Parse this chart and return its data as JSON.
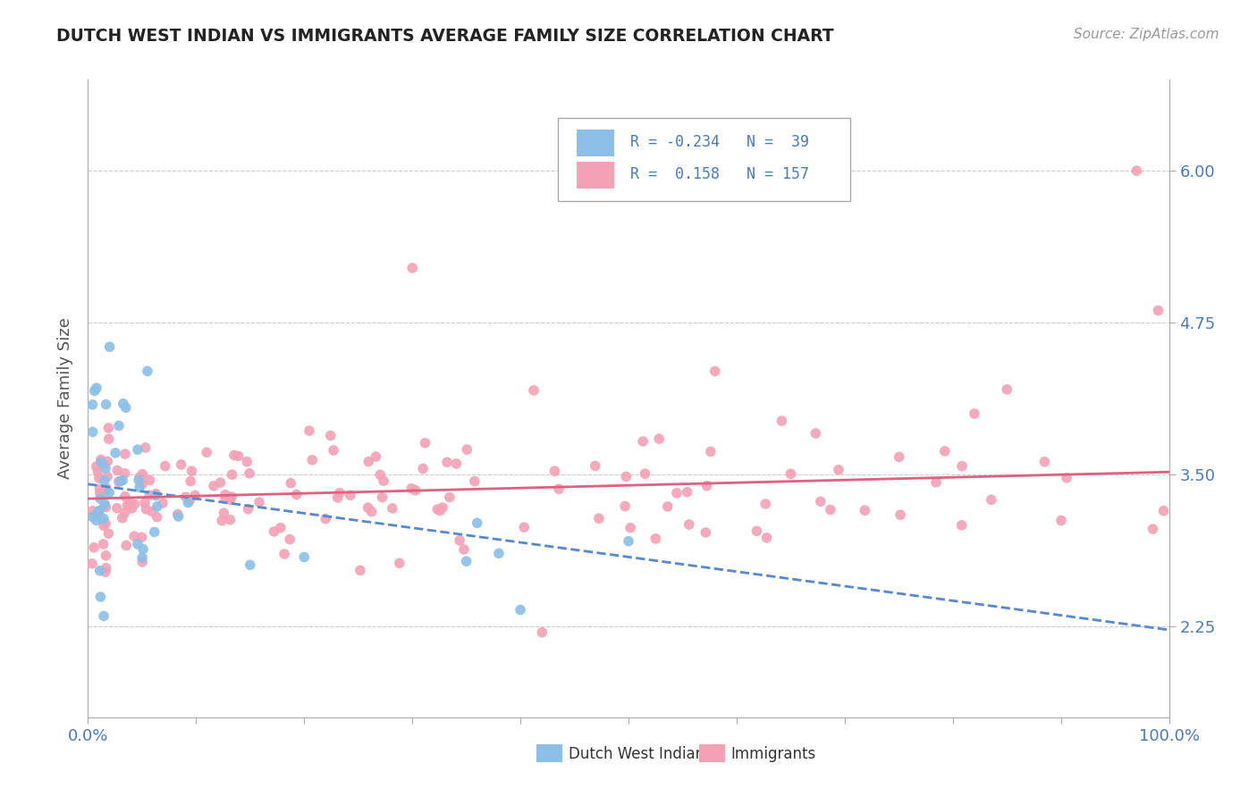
{
  "title": "DUTCH WEST INDIAN VS IMMIGRANTS AVERAGE FAMILY SIZE CORRELATION CHART",
  "source": "Source: ZipAtlas.com",
  "ylabel": "Average Family Size",
  "xlim": [
    0,
    1
  ],
  "ylim": [
    1.5,
    6.75
  ],
  "yticks": [
    2.25,
    3.5,
    4.75,
    6.0
  ],
  "xticks": [
    0.0,
    0.1,
    0.2,
    0.3,
    0.4,
    0.5,
    0.6,
    0.7,
    0.8,
    0.9,
    1.0
  ],
  "xticklabels": [
    "0.0%",
    "",
    "",
    "",
    "",
    "",
    "",
    "",
    "",
    "",
    "100.0%"
  ],
  "yticklabels": [
    "2.25",
    "3.50",
    "4.75",
    "6.00"
  ],
  "group1_name": "Dutch West Indians",
  "group1_color": "#8bbfe8",
  "group1_line_color": "#5588cc",
  "group1_R": -0.234,
  "group1_N": 39,
  "group2_name": "Immigrants",
  "group2_color": "#f4a0b5",
  "group2_line_color": "#e06080",
  "group2_R": 0.158,
  "group2_N": 157,
  "title_color": "#222222",
  "axis_label_color": "#4a7ab8",
  "grid_color": "#cccccc",
  "background_color": "#ffffff",
  "blue_line_x": [
    0.0,
    1.0
  ],
  "blue_line_y": [
    3.42,
    2.22
  ],
  "pink_line_x": [
    0.0,
    1.0
  ],
  "pink_line_y": [
    3.3,
    3.52
  ]
}
